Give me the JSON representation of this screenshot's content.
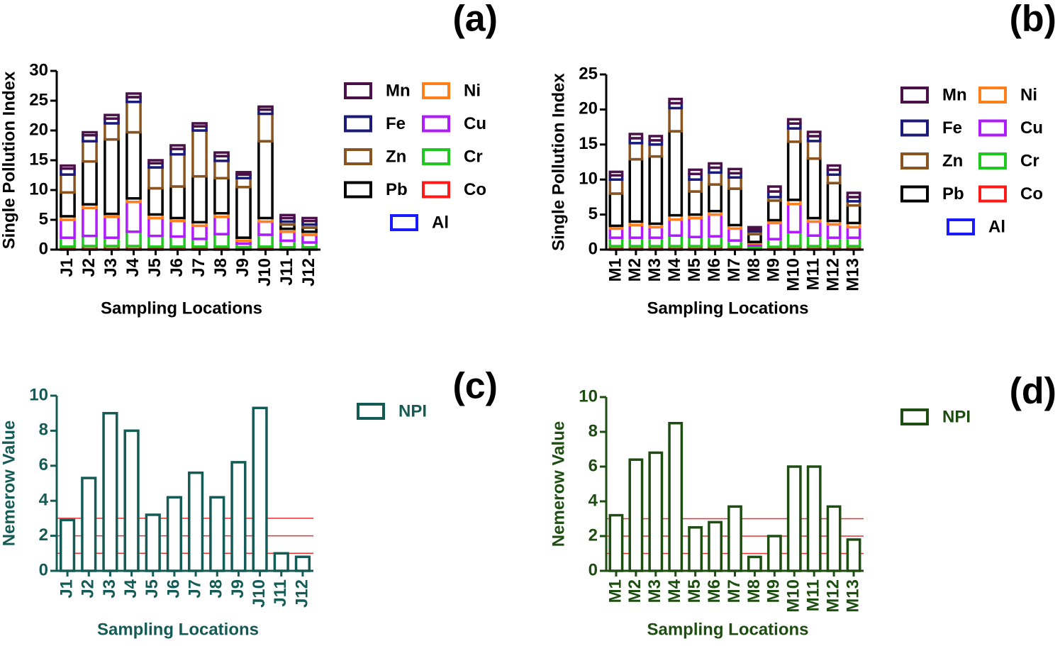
{
  "chart_data": [
    {
      "type": "stacked_bar",
      "panel": "(a)",
      "xlabel": "Sampling Locations",
      "ylabel": "Single Pollution Index",
      "categories": [
        "J1",
        "J2",
        "J3",
        "J4",
        "J5",
        "J6",
        "J7",
        "J8",
        "J9",
        "J10",
        "J11",
        "J12"
      ],
      "ylim": [
        0,
        30
      ],
      "yticks": [
        0,
        5,
        10,
        15,
        20,
        25,
        30
      ],
      "series": [
        {
          "name": "Al",
          "color": "#1a1aff",
          "values": [
            0.1,
            0.1,
            0.1,
            0.1,
            0.1,
            0.1,
            0.1,
            0.1,
            0.1,
            0.1,
            0.1,
            0.1
          ]
        },
        {
          "name": "Co",
          "color": "#ff1a1a",
          "values": [
            0.4,
            0.5,
            0.5,
            0.5,
            0.4,
            0.4,
            0.4,
            0.4,
            0.3,
            0.4,
            0.3,
            0.3
          ]
        },
        {
          "name": "Cr",
          "color": "#1fc81f",
          "values": [
            1.5,
            1.7,
            1.4,
            2.4,
            1.8,
            1.7,
            1.3,
            2.1,
            0.6,
            2,
            1.1,
            0.8
          ]
        },
        {
          "name": "Cu",
          "color": "#b01aff",
          "values": [
            3,
            4.7,
            3.5,
            5,
            3,
            2.6,
            2.2,
            2.9,
            0.5,
            2.2,
            1.5,
            1.3
          ]
        },
        {
          "name": "Ni",
          "color": "#ff7f1a",
          "values": [
            0.6,
            0.6,
            0.5,
            0.6,
            0.6,
            0.5,
            0.6,
            0.6,
            0.5,
            0.6,
            0.5,
            0.5
          ]
        },
        {
          "name": "Pb",
          "color": "#000000",
          "values": [
            4,
            7.2,
            12.5,
            11.1,
            4.4,
            5.3,
            7.7,
            5.9,
            8.5,
            12.9,
            0.7,
            0.7
          ]
        },
        {
          "name": "Zn",
          "color": "#8a5420",
          "values": [
            3,
            3.4,
            2.7,
            5.1,
            3.5,
            5.4,
            7.7,
            2.9,
            1.5,
            4.6,
            0.5,
            0.5
          ]
        },
        {
          "name": "Fe",
          "color": "#1a1a7a",
          "values": [
            1,
            1,
            0.8,
            0.8,
            0.7,
            0.9,
            0.7,
            0.8,
            0.6,
            0.7,
            0.6,
            0.6
          ]
        },
        {
          "name": "Mn",
          "color": "#4a1048",
          "values": [
            0.5,
            0.5,
            0.6,
            0.6,
            0.5,
            0.6,
            0.5,
            0.6,
            0.4,
            0.5,
            0.5,
            0.5
          ]
        }
      ]
    },
    {
      "type": "stacked_bar",
      "panel": "(b)",
      "xlabel": "Sampling Locations",
      "ylabel": "Single Pollution Index",
      "categories": [
        "M1",
        "M2",
        "M3",
        "M4",
        "M5",
        "M6",
        "M7",
        "M8",
        "M9",
        "M10",
        "M11",
        "M12",
        "M13"
      ],
      "ylim": [
        0,
        25
      ],
      "yticks": [
        0,
        5,
        10,
        15,
        20,
        25
      ],
      "series": [
        {
          "name": "Al",
          "color": "#1a1aff",
          "values": [
            0.1,
            0.1,
            0.1,
            0.1,
            0.1,
            0.1,
            0.1,
            0.1,
            0.1,
            0.1,
            0.1,
            0.1,
            0.1
          ]
        },
        {
          "name": "Co",
          "color": "#ff1a1a",
          "values": [
            0.4,
            0.4,
            0.4,
            0.4,
            0.4,
            0.4,
            0.3,
            0.2,
            0.3,
            0.4,
            0.4,
            0.4,
            0.4
          ]
        },
        {
          "name": "Cr",
          "color": "#1fc81f",
          "values": [
            1.2,
            1.2,
            1.2,
            1.5,
            1.3,
            1.4,
            0.9,
            0.3,
            1.1,
            2,
            1.5,
            1.2,
            1.2
          ]
        },
        {
          "name": "Cu",
          "color": "#b01aff",
          "values": [
            1.3,
            1.8,
            1.5,
            2.3,
            2.7,
            3.1,
            1.7,
            0.3,
            2.3,
            4,
            2,
            1.9,
            1.5
          ]
        },
        {
          "name": "Ni",
          "color": "#ff7f1a",
          "values": [
            0.4,
            0.5,
            0.5,
            0.6,
            0.5,
            0.5,
            0.5,
            0.2,
            0.4,
            0.6,
            0.5,
            0.5,
            0.6
          ]
        },
        {
          "name": "Pb",
          "color": "#000000",
          "values": [
            4.6,
            8.9,
            9.6,
            12,
            3.3,
            3.8,
            5.2,
            1.1,
            2.8,
            8.3,
            8.5,
            5.4,
            2.5
          ]
        },
        {
          "name": "Zn",
          "color": "#8a5420",
          "values": [
            2,
            2.3,
            1.7,
            3.3,
            1.7,
            1.7,
            1.6,
            0.4,
            0.5,
            1.9,
            2.5,
            1.2,
            0.6
          ]
        },
        {
          "name": "Fe",
          "color": "#1a1a7a",
          "values": [
            0.6,
            0.7,
            0.6,
            0.7,
            0.8,
            0.7,
            0.6,
            0.3,
            0.8,
            0.7,
            0.7,
            0.7,
            0.6
          ]
        },
        {
          "name": "Mn",
          "color": "#4a1048",
          "values": [
            0.5,
            0.6,
            0.6,
            0.6,
            0.6,
            0.6,
            0.6,
            0.3,
            0.7,
            0.6,
            0.6,
            0.6,
            0.6
          ]
        }
      ]
    },
    {
      "type": "bar",
      "panel": "(c)",
      "xlabel": "Sampling Locations",
      "ylabel": "Nemerow Value",
      "categories": [
        "J1",
        "J2",
        "J3",
        "J4",
        "J5",
        "J6",
        "J7",
        "J8",
        "J9",
        "J10",
        "J11",
        "J12"
      ],
      "ylim": [
        0,
        10
      ],
      "yticks": [
        0,
        2,
        4,
        6,
        8,
        10
      ],
      "reference_lines": [
        1,
        2,
        3
      ],
      "reference_color": "#e83030",
      "series": [
        {
          "name": "NPI",
          "color": "#145a55",
          "values": [
            2.9,
            5.3,
            9,
            8,
            3.2,
            4.2,
            5.6,
            4.2,
            6.2,
            9.3,
            1,
            0.8
          ]
        }
      ]
    },
    {
      "type": "bar",
      "panel": "(d)",
      "xlabel": "Sampling Locations",
      "ylabel": "Nemerow Value",
      "categories": [
        "M1",
        "M2",
        "M3",
        "M4",
        "M5",
        "M6",
        "M7",
        "M8",
        "M9",
        "M10",
        "M11",
        "M12",
        "M13"
      ],
      "ylim": [
        0,
        10
      ],
      "yticks": [
        0,
        2,
        4,
        6,
        8,
        10
      ],
      "reference_lines": [
        1,
        2,
        3
      ],
      "reference_color": "#e83030",
      "series": [
        {
          "name": "NPI",
          "color": "#1e4d12",
          "values": [
            3.2,
            6.4,
            6.8,
            8.5,
            2.5,
            2.8,
            3.7,
            0.8,
            2,
            6,
            6,
            3.7,
            1.8
          ]
        }
      ]
    }
  ]
}
